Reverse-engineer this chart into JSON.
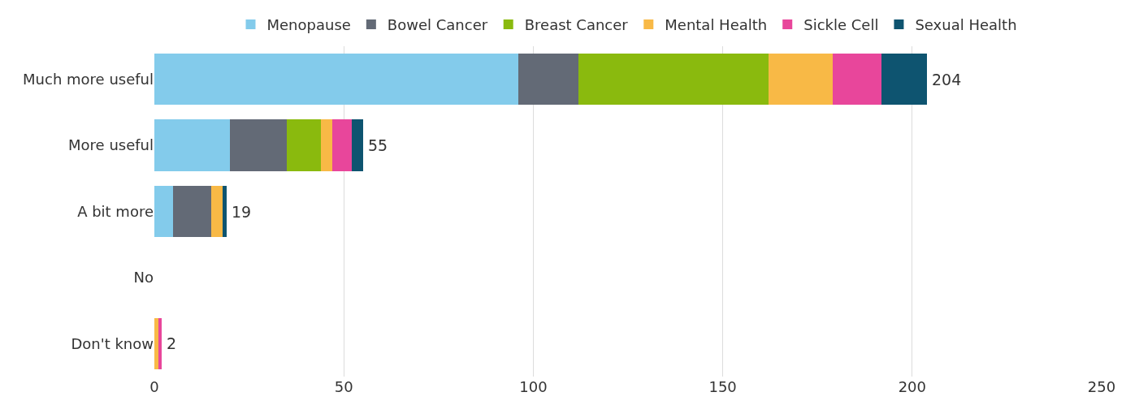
{
  "chart_data": {
    "type": "bar",
    "orientation": "horizontal",
    "stacked": true,
    "categories": [
      "Much more useful",
      "More useful",
      "A bit more",
      "No",
      "Don't know"
    ],
    "series": [
      {
        "name": "Menopause",
        "color": "#83cbeb",
        "values": [
          96,
          20,
          5,
          0,
          0
        ]
      },
      {
        "name": "Bowel Cancer",
        "color": "#636a76",
        "values": [
          16,
          15,
          10,
          0,
          0
        ]
      },
      {
        "name": "Breast Cancer",
        "color": "#8aba0e",
        "values": [
          50,
          9,
          0,
          0,
          0
        ]
      },
      {
        "name": "Mental Health",
        "color": "#f8b946",
        "values": [
          17,
          3,
          3,
          0,
          1
        ]
      },
      {
        "name": "Sickle Cell",
        "color": "#e8469b",
        "values": [
          13,
          5,
          0,
          0,
          1
        ]
      },
      {
        "name": "Sexual Health",
        "color": "#0e5470",
        "values": [
          12,
          3,
          1,
          0,
          0
        ]
      }
    ],
    "totals": [
      "204",
      "55",
      "19",
      null,
      "2"
    ],
    "xlim": [
      0,
      250
    ],
    "xticks": [
      0,
      50,
      100,
      150,
      200,
      250
    ],
    "grid": "x",
    "legend": "top"
  }
}
